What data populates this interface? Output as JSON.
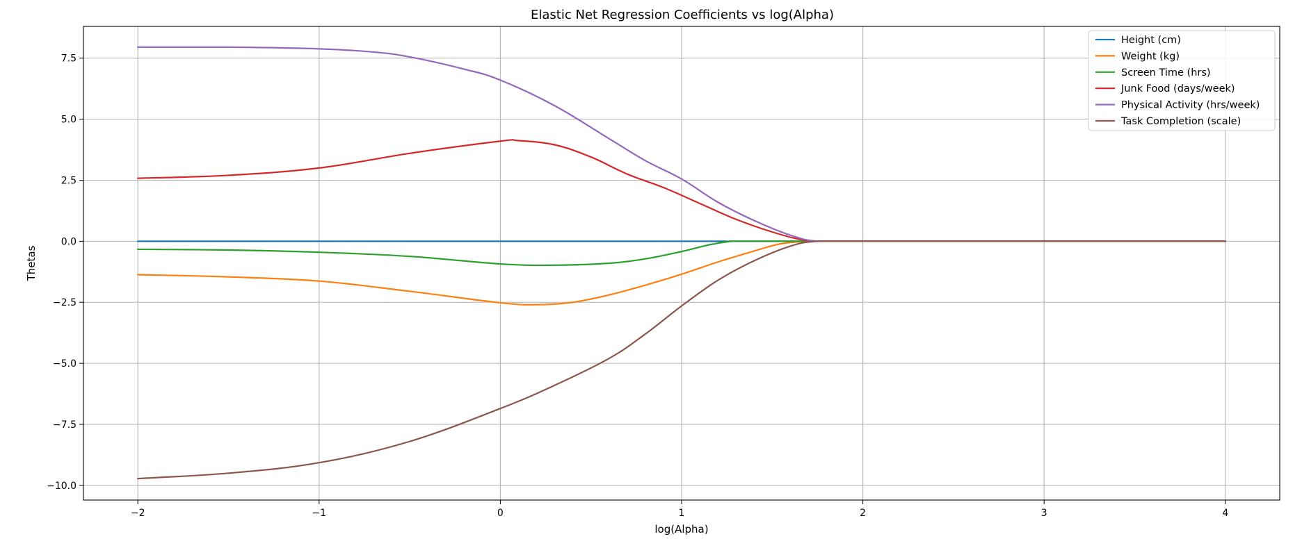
{
  "chart_data": {
    "type": "line",
    "title": "Elastic Net Regression Coefficients vs log(Alpha)",
    "xlabel": "log(Alpha)",
    "ylabel": "Thetas",
    "xlim": [
      -2.3,
      4.3
    ],
    "ylim": [
      -10.6,
      8.8
    ],
    "x_ticks": [
      -2,
      -1,
      0,
      1,
      2,
      3,
      4
    ],
    "x_tick_labels": [
      "−2",
      "−1",
      "0",
      "1",
      "2",
      "3",
      "4"
    ],
    "y_ticks": [
      -10,
      -7.5,
      -5,
      -2.5,
      0,
      2.5,
      5,
      7.5
    ],
    "y_tick_labels": [
      "−10.0",
      "−7.5",
      "−5.0",
      "−2.5",
      "0.0",
      "2.5",
      "5.0",
      "7.5"
    ],
    "grid": true,
    "legend_position": "top-right",
    "series": [
      {
        "name": "Height (cm)",
        "color": "#1f77b4",
        "x": [
          -2,
          4
        ],
        "y": [
          0,
          0
        ]
      },
      {
        "name": "Weight (kg)",
        "color": "#ff7f0e",
        "x": [
          -2,
          -1.5,
          -1,
          -0.5,
          0,
          0.2,
          0.4,
          0.6,
          0.8,
          1.0,
          1.2,
          1.4,
          1.55,
          1.7,
          1.75,
          2,
          3,
          4
        ],
        "y": [
          -1.37,
          -1.46,
          -1.63,
          -2.05,
          -2.52,
          -2.6,
          -2.5,
          -2.2,
          -1.8,
          -1.35,
          -0.85,
          -0.4,
          -0.1,
          0,
          0,
          0,
          0,
          0
        ]
      },
      {
        "name": "Screen Time (hrs)",
        "color": "#2ca02c",
        "x": [
          -2,
          -1.5,
          -1,
          -0.5,
          0,
          0.3,
          0.6,
          0.8,
          1.0,
          1.15,
          1.28,
          1.4,
          1.6,
          1.75,
          2,
          3,
          4
        ],
        "y": [
          -0.33,
          -0.36,
          -0.45,
          -0.62,
          -0.93,
          -0.98,
          -0.9,
          -0.72,
          -0.42,
          -0.15,
          0,
          0,
          0,
          0,
          0,
          0,
          0
        ]
      },
      {
        "name": "Junk Food (days/week)",
        "color": "#d62728",
        "x": [
          -2,
          -1.5,
          -1,
          -0.5,
          0,
          0.1,
          0.3,
          0.5,
          0.7,
          0.9,
          1.1,
          1.3,
          1.5,
          1.65,
          1.75,
          2,
          3,
          4
        ],
        "y": [
          2.58,
          2.7,
          3.0,
          3.6,
          4.1,
          4.12,
          3.95,
          3.45,
          2.75,
          2.2,
          1.55,
          0.9,
          0.38,
          0.08,
          0,
          0,
          0,
          0
        ]
      },
      {
        "name": "Physical Activity (hrs/week)",
        "color": "#9467bd",
        "x": [
          -2,
          -1.5,
          -1,
          -0.7,
          -0.5,
          -0.2,
          0,
          0.3,
          0.6,
          0.8,
          1.0,
          1.2,
          1.4,
          1.6,
          1.75,
          2,
          3,
          4
        ],
        "y": [
          7.95,
          7.95,
          7.88,
          7.75,
          7.55,
          7.05,
          6.6,
          5.55,
          4.2,
          3.3,
          2.55,
          1.6,
          0.85,
          0.25,
          0,
          0,
          0,
          0
        ]
      },
      {
        "name": "Task Completion (scale)",
        "color": "#8c564b",
        "x": [
          -2,
          -1.5,
          -1,
          -0.5,
          0,
          0.3,
          0.6,
          0.8,
          1.0,
          1.2,
          1.4,
          1.6,
          1.75,
          2,
          3,
          4
        ],
        "y": [
          -9.72,
          -9.5,
          -9.07,
          -8.2,
          -6.85,
          -5.9,
          -4.8,
          -3.8,
          -2.65,
          -1.6,
          -0.8,
          -0.2,
          0,
          0,
          0,
          0
        ]
      }
    ]
  }
}
